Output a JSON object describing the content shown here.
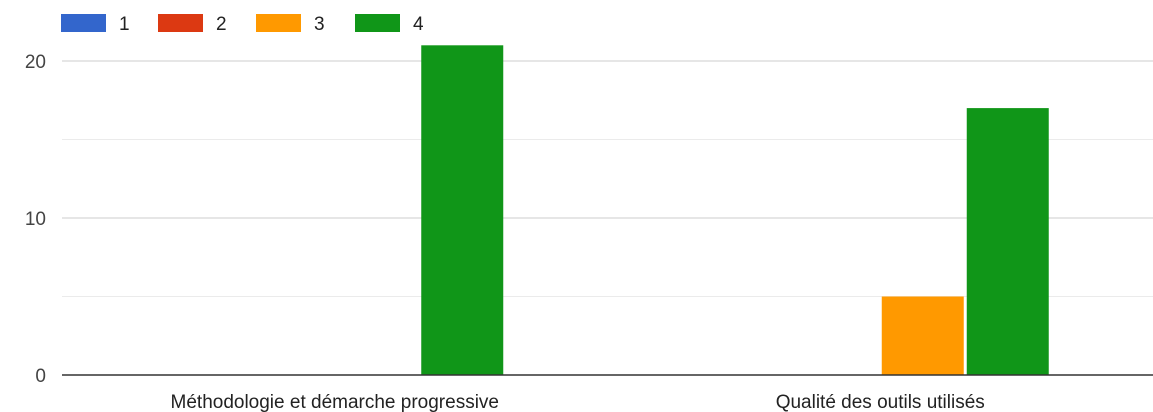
{
  "chart_data": {
    "type": "bar",
    "title": "",
    "xlabel": "",
    "ylabel": "",
    "categories": [
      "Méthodologie et démarche progressive",
      "Qualité des outils utilisés"
    ],
    "series": [
      {
        "name": "1",
        "color": "#3366cc",
        "values": [
          0,
          0
        ]
      },
      {
        "name": "2",
        "color": "#dc3912",
        "values": [
          0,
          0
        ]
      },
      {
        "name": "3",
        "color": "#ff9900",
        "values": [
          0,
          5
        ]
      },
      {
        "name": "4",
        "color": "#109618",
        "values": [
          21,
          17
        ]
      }
    ],
    "ylim": [
      0,
      20
    ],
    "yticks": [
      "0",
      "10",
      "20"
    ],
    "grid": true,
    "legend": "top-left"
  }
}
